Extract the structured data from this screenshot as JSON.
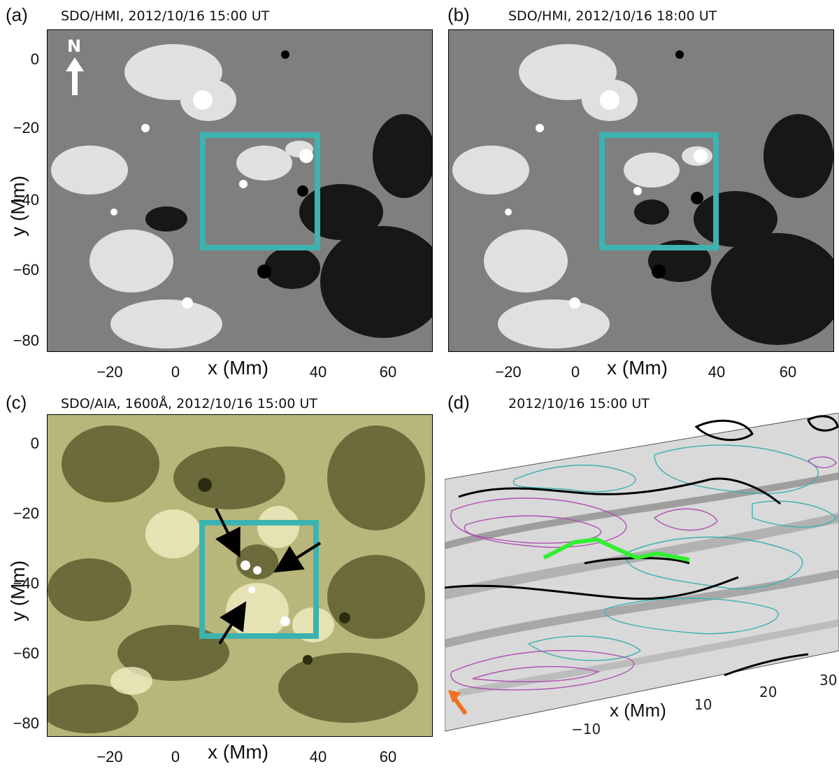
{
  "panels": {
    "a": {
      "label": "(a)",
      "caption": "SDO/HMI, 2012/10/16 15:00 UT",
      "yticks": [
        "0",
        "−20",
        "−40",
        "−60",
        "−80"
      ],
      "xticks": [
        "−20",
        "0",
        "40",
        "60"
      ],
      "ylabel": "y (Mm)",
      "xlabel": "x (Mm)",
      "north_label": "N"
    },
    "b": {
      "label": "(b)",
      "caption": "SDO/HMI, 2012/10/16 18:00 UT",
      "xticks": [
        "−20",
        "0",
        "40",
        "60"
      ],
      "xlabel": "x (Mm)"
    },
    "c": {
      "label": "(c)",
      "caption": "SDO/AIA, 1600Å, 2012/10/16 15:00 UT",
      "yticks": [
        "0",
        "−20",
        "−40",
        "−60",
        "−80"
      ],
      "xticks": [
        "−20",
        "0",
        "40",
        "60"
      ],
      "ylabel": "y (Mm)",
      "xlabel": "x (Mm)"
    },
    "d": {
      "label": "(d)",
      "caption": "2012/10/16 15:00 UT",
      "xticks": [
        "−10",
        "10",
        "20",
        "30"
      ],
      "xlabel": "x (Mm)"
    }
  },
  "colors": {
    "roi_box": "#3cb3b0",
    "hmi_background": "#808080",
    "aia_dark": "#5a5a2c",
    "aia_light": "#e8e6b0",
    "contour_positive": "#b050b0",
    "contour_negative": "#3ab0b0",
    "flux_rope": "#33ee33",
    "view_arrow": "#f07020"
  },
  "icons": {
    "north_arrow": "up-arrow-icon",
    "view_arrow": "orange-arrow-icon",
    "brightening_arrows": "black-arrow-icon"
  }
}
